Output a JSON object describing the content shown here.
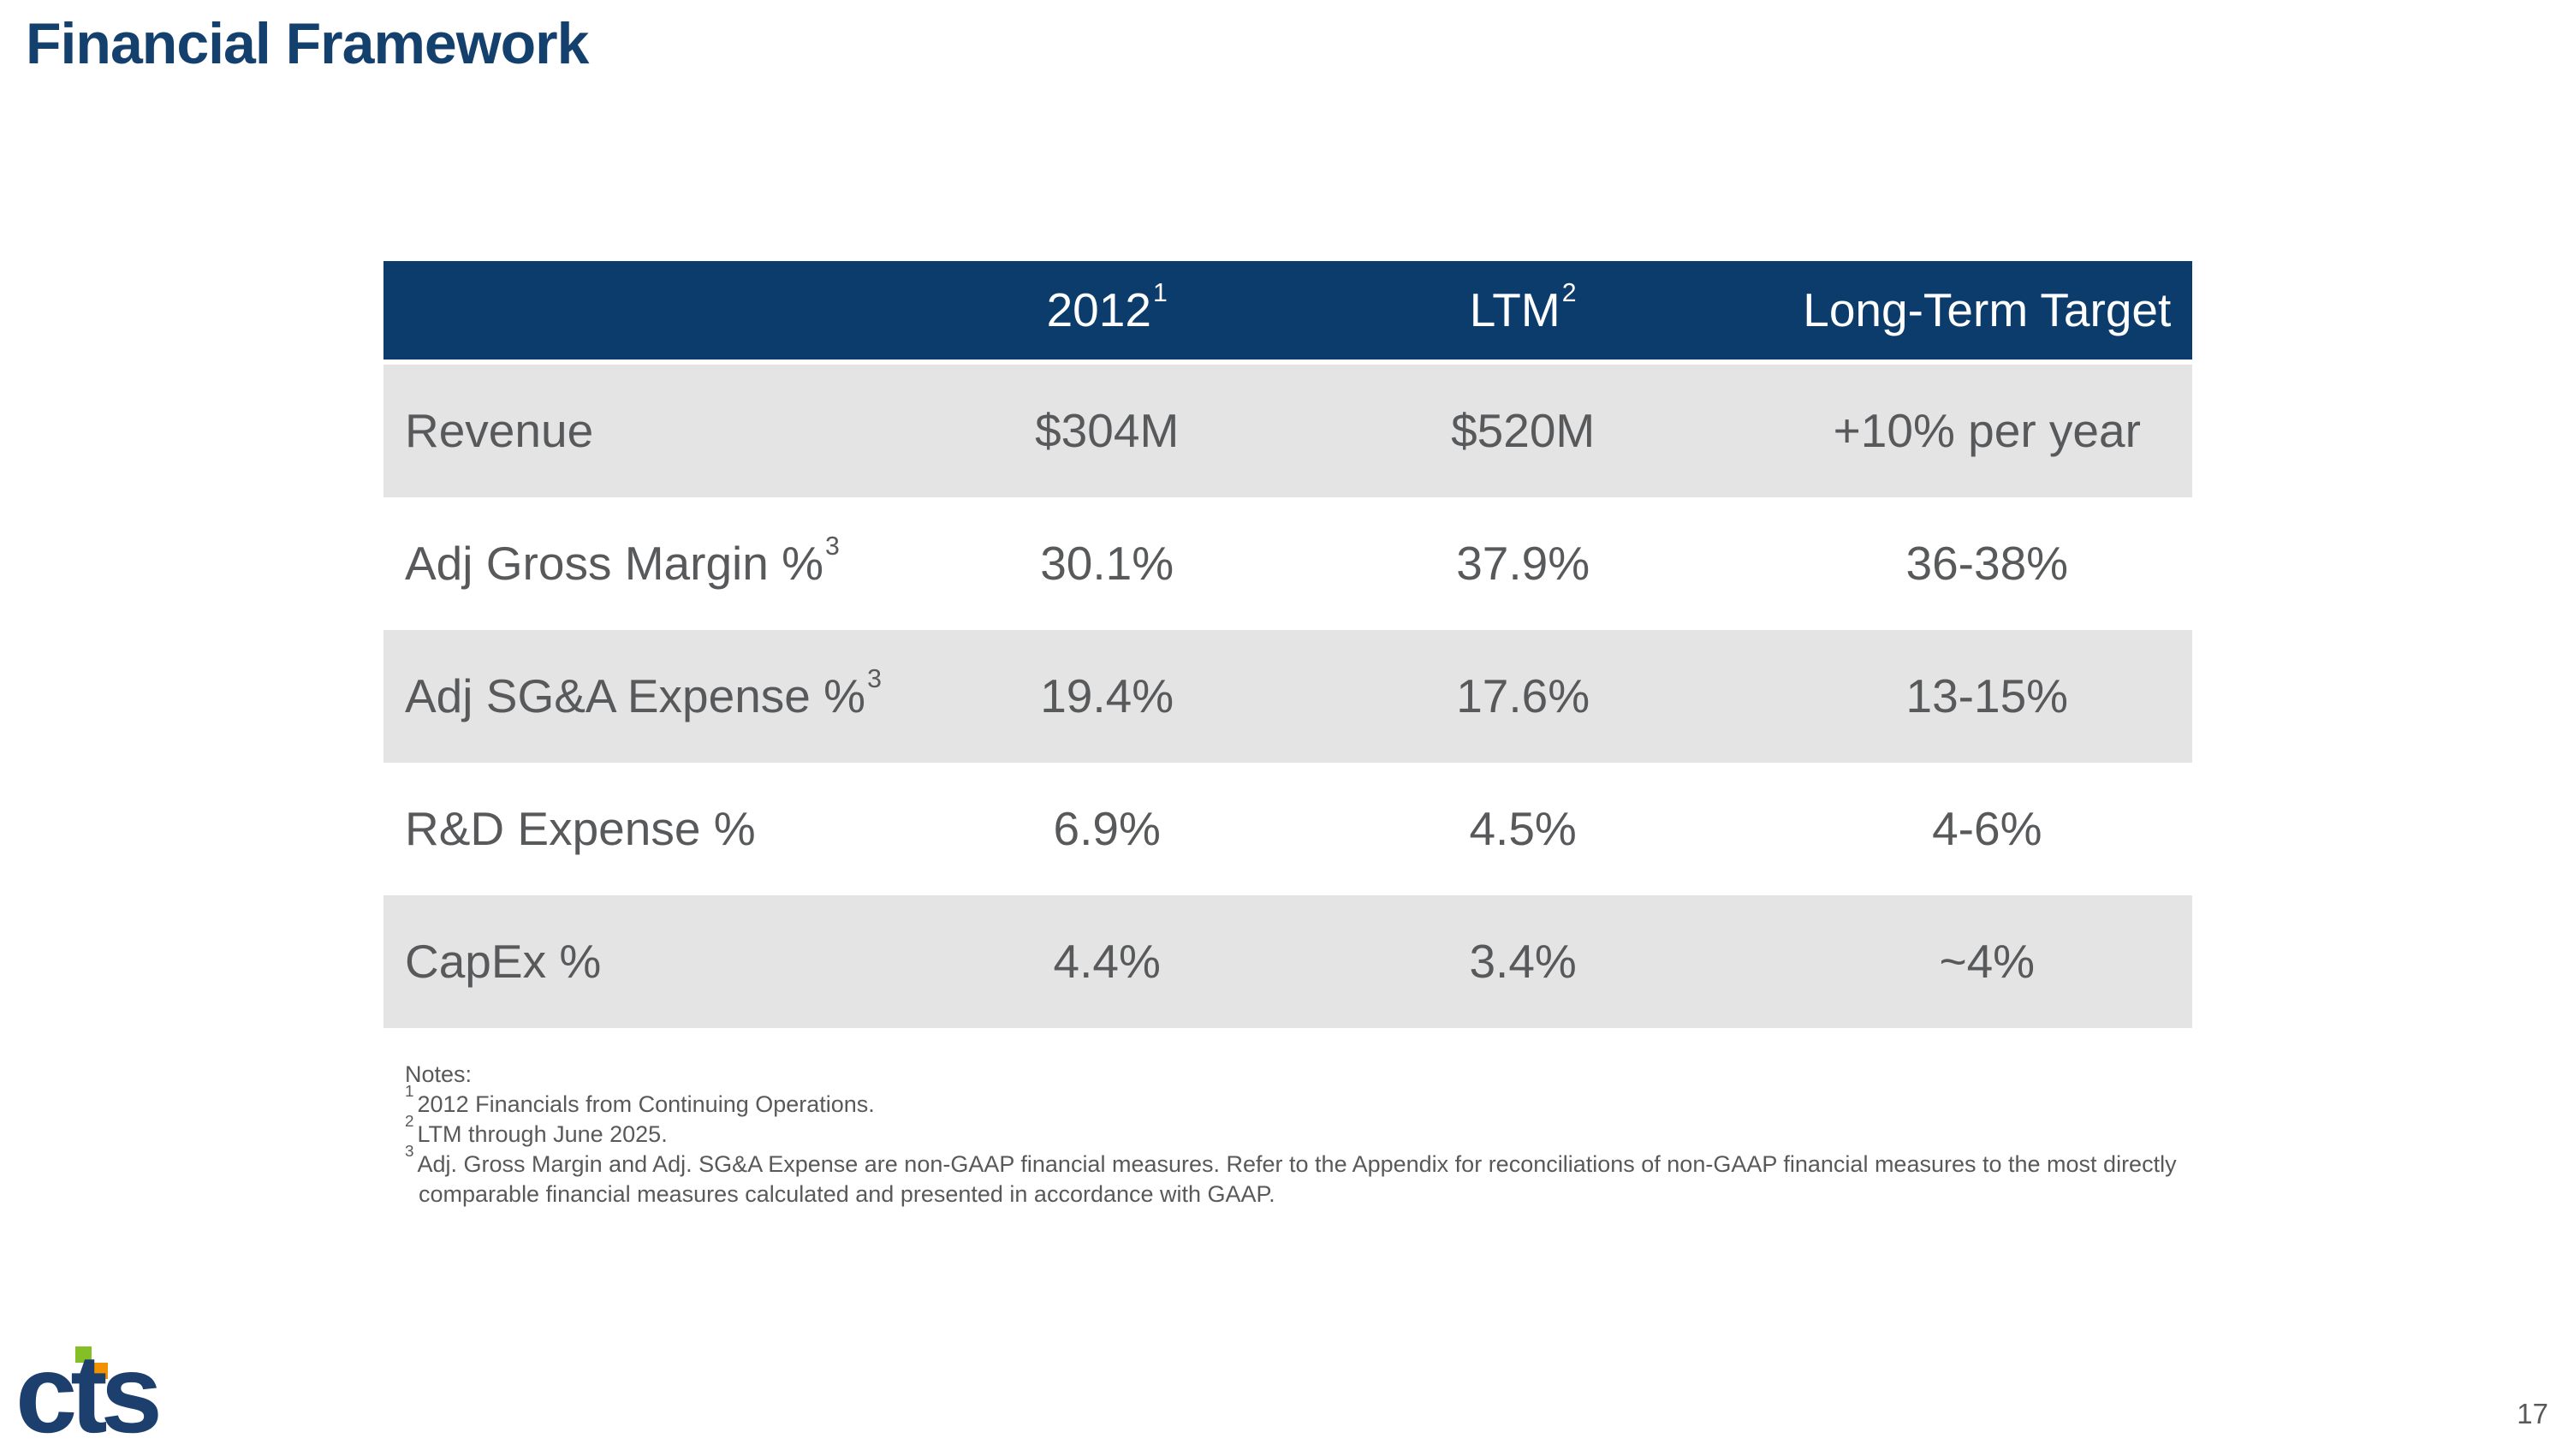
{
  "slide": {
    "title": "Financial Framework",
    "page_number": "17"
  },
  "table": {
    "columns": [
      {
        "label": "",
        "sup": ""
      },
      {
        "label": "2012",
        "sup": "1"
      },
      {
        "label": "LTM",
        "sup": "2"
      },
      {
        "label": "Long-Term Target",
        "sup": ""
      }
    ],
    "rows": [
      {
        "metric": "Revenue",
        "sup": "",
        "y2012": "$304M",
        "ltm": "$520M",
        "target": "+10% per year"
      },
      {
        "metric": "Adj Gross Margin %",
        "sup": "3",
        "y2012": "30.1%",
        "ltm": "37.9%",
        "target": "36-38%"
      },
      {
        "metric": "Adj SG&A Expense %",
        "sup": "3",
        "y2012": "19.4%",
        "ltm": "17.6%",
        "target": "13-15%"
      },
      {
        "metric": "R&D Expense %",
        "sup": "",
        "y2012": "6.9%",
        "ltm": "4.5%",
        "target": "4-6%"
      },
      {
        "metric": "CapEx %",
        "sup": "",
        "y2012": "4.4%",
        "ltm": "3.4%",
        "target": "~4%"
      }
    ]
  },
  "notes": {
    "heading": "Notes:",
    "items": [
      {
        "sup": "1",
        "text": "2012 Financials from Continuing Operations."
      },
      {
        "sup": "2",
        "text": "LTM through June 2025."
      },
      {
        "sup": "3",
        "text": "Adj. Gross Margin and Adj. SG&A Expense are non-GAAP financial measures. Refer to the Appendix for reconciliations of non-GAAP financial measures to the most directly",
        "text2": "comparable financial measures calculated and presented in accordance with GAAP."
      }
    ]
  },
  "logo": {
    "text": "cts"
  },
  "colors": {
    "title_navy": "#14406e",
    "header_navy": "#0c3c6c",
    "header_text": "#ffffff",
    "band_gray": "#e4e4e5",
    "body_text": "#58595b",
    "notes_text": "#595959",
    "logo_navy": "#1c3f6e",
    "logo_green": "#84bf25",
    "logo_orange": "#f39200"
  }
}
